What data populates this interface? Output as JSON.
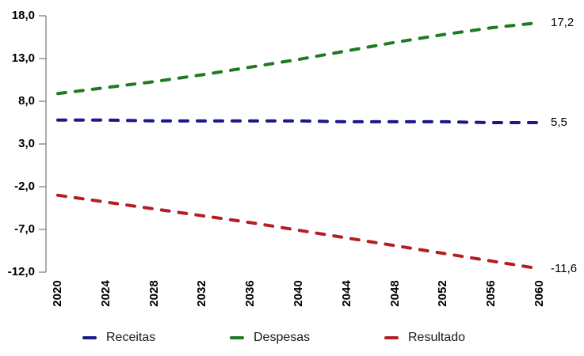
{
  "chart_data": {
    "type": "line",
    "title": "",
    "xlabel": "",
    "ylabel": "",
    "x": [
      2020,
      2024,
      2028,
      2032,
      2036,
      2040,
      2044,
      2048,
      2052,
      2056,
      2060
    ],
    "x_tick_labels": [
      "2020",
      "2024",
      "2028",
      "2032",
      "2036",
      "2040",
      "2044",
      "2048",
      "2052",
      "2056",
      "2060"
    ],
    "y_ticks": [
      18,
      13,
      8,
      3,
      -2,
      -7,
      -12
    ],
    "y_tick_labels": [
      "18,0",
      "13,0",
      "8,0",
      "3,0",
      "-2,0",
      "-7,0",
      "-12,0"
    ],
    "ylim": [
      -12,
      18
    ],
    "grid": false,
    "line_style": "dashed",
    "legend_position": "bottom",
    "axis_color": "#7f7f7f",
    "series": [
      {
        "name": "Receitas",
        "color": "#19198c",
        "values": [
          5.8,
          5.8,
          5.7,
          5.7,
          5.7,
          5.7,
          5.6,
          5.6,
          5.6,
          5.5,
          5.5
        ],
        "end_label": "5,5"
      },
      {
        "name": "Despesas",
        "color": "#1e7b23",
        "values": [
          8.9,
          9.6,
          10.3,
          11.1,
          12.0,
          12.9,
          13.9,
          14.9,
          15.8,
          16.6,
          17.2
        ],
        "end_label": "17,2"
      },
      {
        "name": "Resultado",
        "color": "#b41e23",
        "values": [
          -3.0,
          -3.8,
          -4.6,
          -5.4,
          -6.2,
          -7.1,
          -8.0,
          -8.9,
          -9.8,
          -10.7,
          -11.6
        ],
        "end_label": "-11,6"
      }
    ]
  }
}
